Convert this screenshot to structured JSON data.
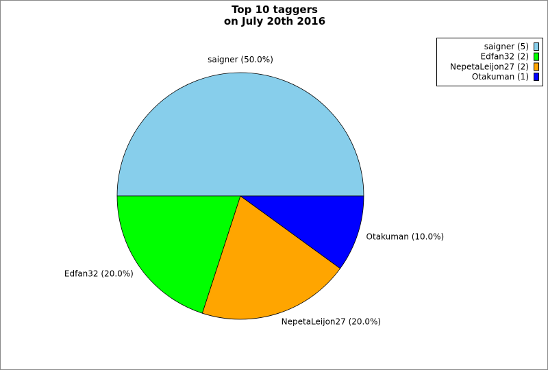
{
  "chart_data": {
    "type": "pie",
    "title": [
      "Top 10 taggers",
      "on July 20th 2016"
    ],
    "slices": [
      {
        "name": "saigner",
        "count": 5,
        "percent": 50.0,
        "color": "#87ceeb",
        "legend": "saigner (5)",
        "label": "saigner (50.0%)"
      },
      {
        "name": "Edfan32",
        "count": 2,
        "percent": 20.0,
        "color": "#00ff00",
        "legend": "Edfan32 (2)",
        "label": "Edfan32 (20.0%)"
      },
      {
        "name": "NepetaLeijon27",
        "count": 2,
        "percent": 20.0,
        "color": "#ffa500",
        "legend": "NepetaLeijon27 (2)",
        "label": "NepetaLeijon27 (20.0%)"
      },
      {
        "name": "Otakuman",
        "count": 1,
        "percent": 10.0,
        "color": "#0000ff",
        "legend": "Otakuman (1)",
        "label": "Otakuman (10.0%)"
      }
    ],
    "legend_position": "top-right"
  }
}
